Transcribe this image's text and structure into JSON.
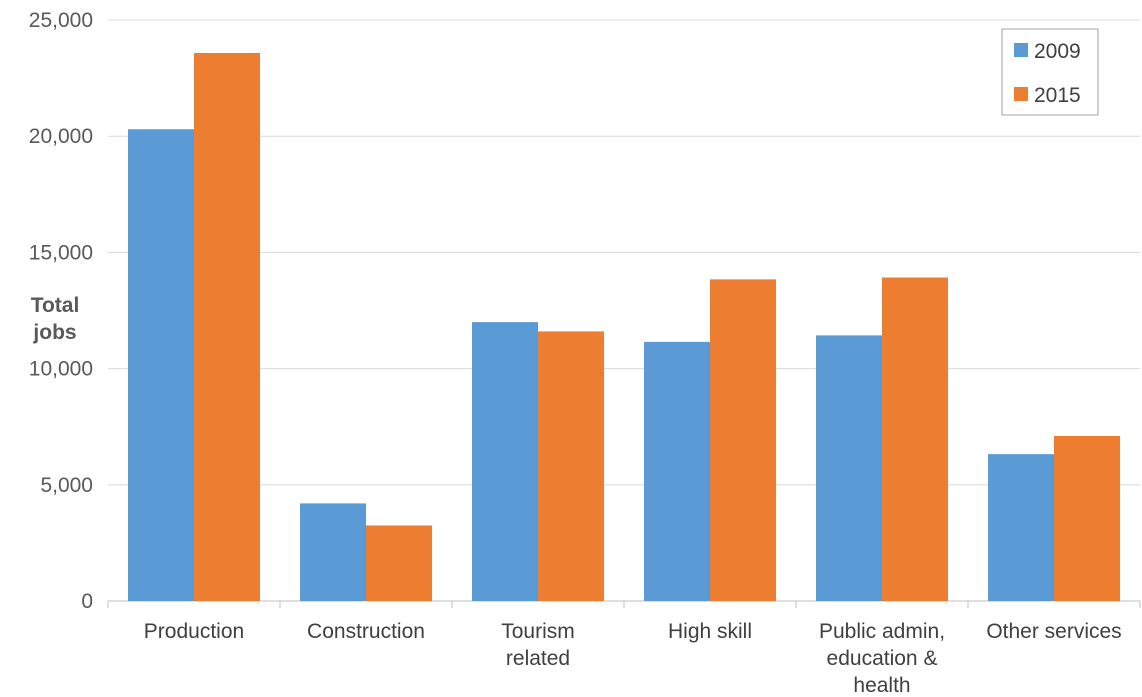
{
  "chart_data": {
    "type": "bar",
    "title": "",
    "xlabel": "",
    "ylabel": "Total jobs",
    "ylim": [
      0,
      25000
    ],
    "yticks": [
      0,
      5000,
      10000,
      15000,
      20000,
      25000
    ],
    "ytick_labels": [
      "0",
      "5,000",
      "10,000",
      "15,000",
      "20,000",
      "25,000"
    ],
    "categories": [
      "Production",
      "Construction",
      "Tourism related",
      "High skill",
      "Public admin, education & health",
      "Other services"
    ],
    "series": [
      {
        "name": "2009",
        "color": "#5b9bd5",
        "values": [
          20300,
          4200,
          12000,
          11150,
          11430,
          6320
        ]
      },
      {
        "name": "2015",
        "color": "#ed7d31",
        "values": [
          23580,
          3250,
          11600,
          13840,
          13920,
          7100
        ]
      }
    ],
    "grid": true,
    "legend_position": "top-right"
  }
}
